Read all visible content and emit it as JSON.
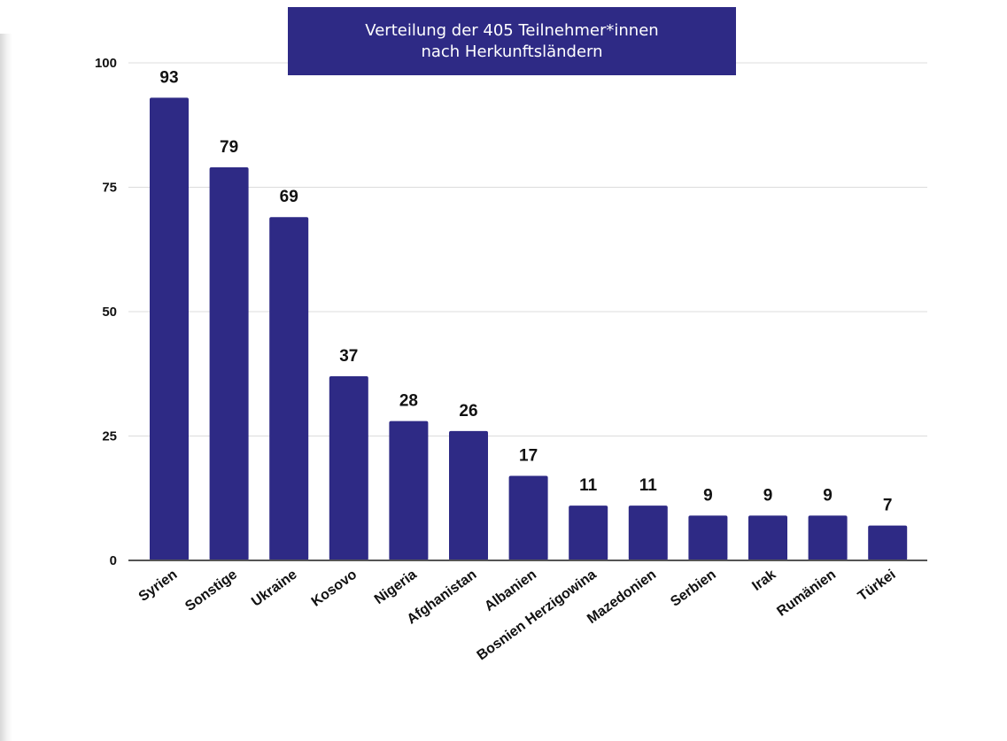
{
  "colors": {
    "bar": "#2e2a85",
    "title_bg": "#2e2a85",
    "title_text": "#ffffff",
    "grid": "#dcdcdc"
  },
  "chart_data": {
    "type": "bar",
    "title_lines": [
      "Verteilung der 405 Teilnehmer*innen",
      "nach Herkunftsländern"
    ],
    "categories": [
      "Syrien",
      "Sonstige",
      "Ukraine",
      "Kosovo",
      "Nigeria",
      "Afghanistan",
      "Albanien",
      "Bosnien Herzigowina",
      "Mazedonien",
      "Serbien",
      "Irak",
      "Rumänien",
      "Türkei"
    ],
    "values": [
      93,
      79,
      69,
      37,
      28,
      26,
      17,
      11,
      11,
      9,
      9,
      9,
      7
    ],
    "ylim": [
      0,
      100
    ],
    "yticks": [
      0,
      25,
      50,
      75,
      100
    ],
    "xlabel": "",
    "ylabel": "",
    "grid": true,
    "data_labels": true,
    "legend": "none"
  }
}
